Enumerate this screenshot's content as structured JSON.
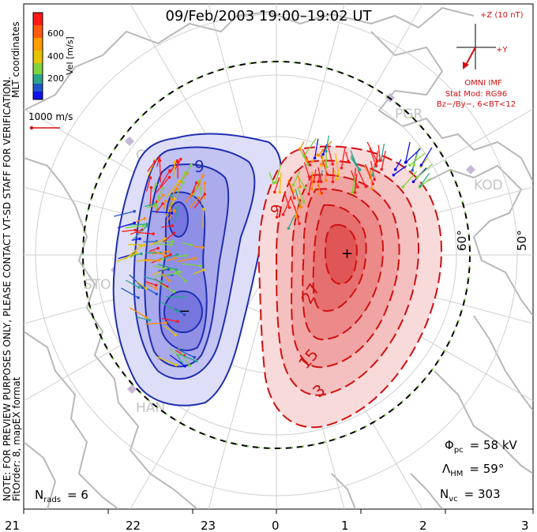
{
  "title": "09/Feb/2003 19:00–19:02 UT",
  "colorbar": {
    "label": "Vel [m/s]",
    "ticks": [
      "600",
      "400",
      "200"
    ],
    "colors": [
      "#ff1a1a",
      "#ff8c00",
      "#e6c200",
      "#7fd23c",
      "#2ca58d",
      "#2156c8",
      "#1010ee"
    ]
  },
  "coordinate_label": "MLT coordinates",
  "side_note": {
    "line1": "NOTE: FOR PREVIEW PURPOSES ONLY, PLEASE CONTACT VT-SD STAFF FOR VERIFICATION.",
    "line2": "FitOrder: 8, mapEX format"
  },
  "scale_vector": {
    "label": "1000 m/s"
  },
  "imf": {
    "z_label": "+Z (10 nT)",
    "y_label": "+Y",
    "source": "OMNI IMF",
    "model": "Stat Mod: RG96",
    "condition": "Bz−/By−, 6<BT<12"
  },
  "stations": [
    "PGR",
    "GBR",
    "KOD",
    "STO",
    "HAN"
  ],
  "latitude_labels": [
    "60°",
    "50°"
  ],
  "contour_labels": {
    "negative": [
      "9"
    ],
    "positive": [
      "27",
      "15",
      "3",
      "9"
    ]
  },
  "potential_markers": {
    "max": "+",
    "min": "−"
  },
  "stats": {
    "phi_pc": {
      "symbol": "Φ",
      "sub": "pc",
      "value": "= 58 kV"
    },
    "lambda_hm": {
      "symbol": "Λ",
      "sub": "HM",
      "value": "= 59°"
    },
    "n_vc": {
      "symbol": "N",
      "sub": "vc",
      "value": "= 303"
    },
    "n_rads": {
      "symbol": "N",
      "sub": "rads",
      "value": "= 6"
    }
  },
  "mlt_axis": [
    "21",
    "22",
    "23",
    "0",
    "1",
    "2",
    "3"
  ],
  "colors": {
    "negative_cell": "#1f2fb0",
    "positive_cell": "#d01010",
    "boundary": "#000000",
    "coast": "#b8b8b8"
  }
}
